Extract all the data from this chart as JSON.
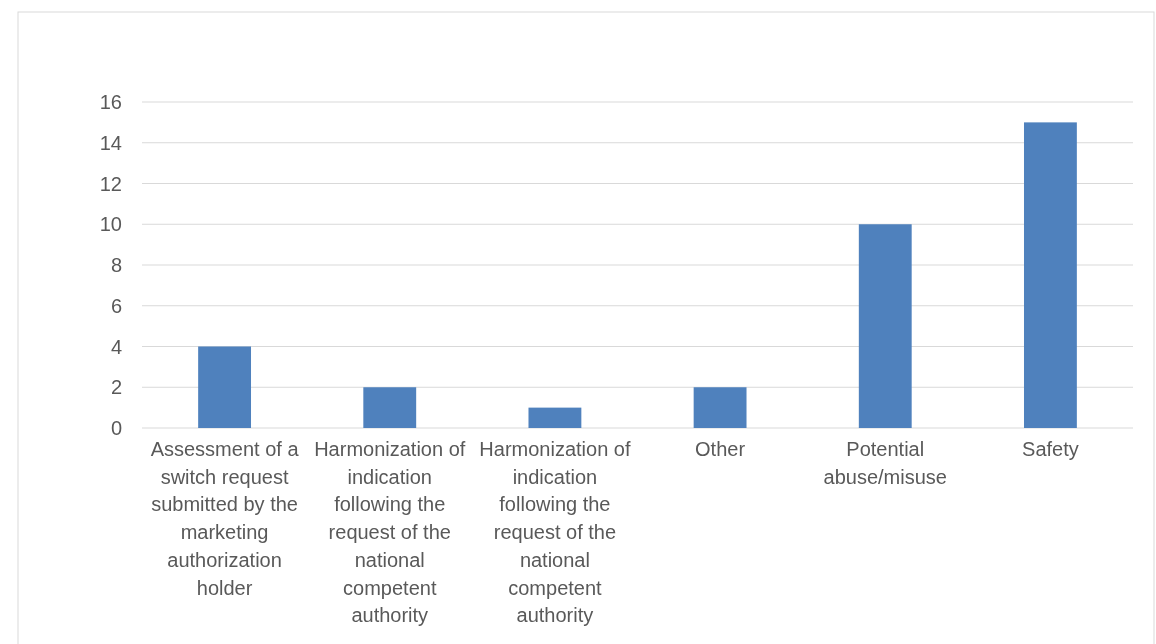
{
  "chart_data": {
    "type": "bar",
    "categories": [
      "Assessment of a switch request submitted by the marketing authorization holder",
      "Harmonization of indication following the request of the national competent authority",
      "Harmonization of indication following the request of the national competent authority",
      "Other",
      "Potential abuse/misuse",
      "Safety"
    ],
    "values": [
      4,
      2,
      1,
      2,
      10,
      15
    ],
    "color": "#4f81bd",
    "ylim": [
      0,
      16
    ],
    "yticks": [
      0,
      2,
      4,
      6,
      8,
      10,
      12,
      14,
      16
    ],
    "grid": "y"
  }
}
